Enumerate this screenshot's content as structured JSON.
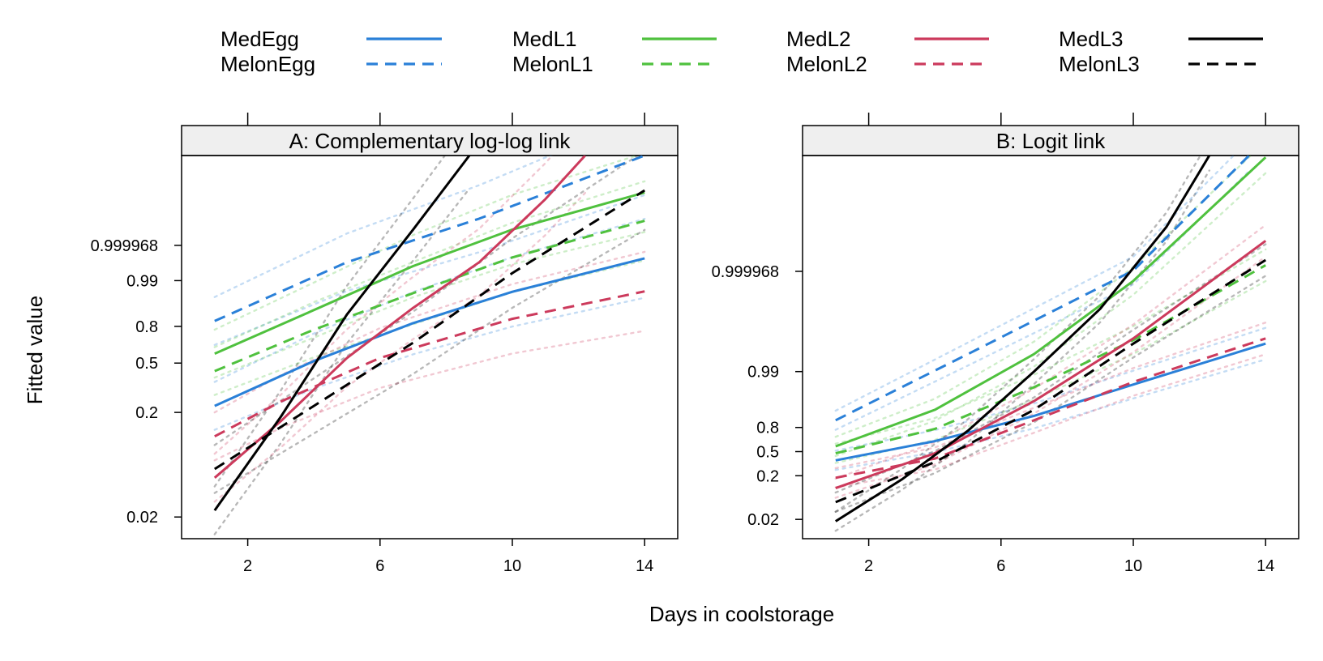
{
  "chart_data": {
    "type": "line",
    "xlabel": "Days in coolstorage",
    "ylabel": "Fitted value",
    "xlim": [
      0,
      15
    ],
    "x_ticks": [
      2,
      6,
      10,
      14
    ],
    "legend": {
      "placement": "top",
      "entries": [
        {
          "name": "MedEgg",
          "color": "#2a80d8",
          "dash": "solid"
        },
        {
          "name": "MelonEgg",
          "color": "#2a80d8",
          "dash": "dashed"
        },
        {
          "name": "MedL1",
          "color": "#4fc13e",
          "dash": "solid"
        },
        {
          "name": "MelonL1",
          "color": "#4fc13e",
          "dash": "dashed"
        },
        {
          "name": "MedL2",
          "color": "#cc3a5c",
          "dash": "solid"
        },
        {
          "name": "MelonL2",
          "color": "#cc3a5c",
          "dash": "dashed"
        },
        {
          "name": "MedL3",
          "color": "#000000",
          "dash": "solid"
        },
        {
          "name": "MelonL3",
          "color": "#000000",
          "dash": "dashed"
        }
      ]
    },
    "panels": [
      {
        "key": "cll",
        "title": "A: Complementary log-log link",
        "y_ticks": [
          "0.02",
          "0.2",
          "0.5",
          "0.8",
          "0.99",
          "0.999968"
        ],
        "y_tick_positions": [
          -3.902,
          -1.5,
          -0.367,
          0.476,
          1.527,
          2.337
        ],
        "ylim": [
          -4.4,
          4.4
        ],
        "series": [
          {
            "name": "MedEgg",
            "color": "#2a80d8",
            "dash": "solid",
            "x": [
              1,
              4,
              7,
              10,
              14
            ],
            "y": [
              -1.35,
              -0.32,
              0.55,
              1.27,
              2.04
            ]
          },
          {
            "name": "MelonEgg",
            "color": "#2a80d8",
            "dash": "dashed",
            "x": [
              1,
              5,
              9,
              14
            ],
            "y": [
              0.6,
              1.95,
              2.95,
              4.4
            ]
          },
          {
            "name": "MedL1",
            "color": "#4fc13e",
            "dash": "solid",
            "x": [
              1,
              4,
              7,
              10,
              14
            ],
            "y": [
              -0.15,
              0.85,
              1.86,
              2.7,
              3.55
            ]
          },
          {
            "name": "MelonL1",
            "color": "#4fc13e",
            "dash": "dashed",
            "x": [
              1,
              4,
              7,
              10,
              14
            ],
            "y": [
              -0.55,
              0.4,
              1.24,
              2.06,
              2.9
            ]
          },
          {
            "name": "MedL2",
            "color": "#cc3a5c",
            "dash": "solid",
            "x": [
              1,
              3,
              5,
              7,
              9,
              11,
              12.2
            ],
            "y": [
              -3.0,
              -1.7,
              -0.25,
              0.9,
              1.95,
              3.4,
              4.4
            ]
          },
          {
            "name": "MelonL2",
            "color": "#cc3a5c",
            "dash": "dashed",
            "x": [
              1,
              3,
              6,
              10,
              14
            ],
            "y": [
              -2.05,
              -1.25,
              -0.25,
              0.65,
              1.28
            ]
          },
          {
            "name": "MedL3",
            "color": "#000000",
            "dash": "solid",
            "x": [
              1,
              3,
              5,
              7,
              8.7
            ],
            "y": [
              -3.75,
              -1.6,
              0.75,
              2.7,
              4.4
            ]
          },
          {
            "name": "MelonL3",
            "color": "#000000",
            "dash": "dashed",
            "x": [
              1,
              4,
              7,
              10,
              14
            ],
            "y": [
              -2.8,
              -1.35,
              0.1,
              1.7,
              3.6
            ]
          }
        ]
      },
      {
        "key": "logit",
        "title": "B: Logit link",
        "y_ticks": [
          "0.02",
          "0.2",
          "0.5",
          "0.8",
          "0.99",
          "0.999968"
        ],
        "y_tick_positions": [
          -3.892,
          -1.386,
          0.0,
          1.386,
          4.595,
          10.35
        ],
        "ylim": [
          -5.0,
          17.0
        ],
        "series": [
          {
            "name": "MedEgg",
            "color": "#2a80d8",
            "dash": "solid",
            "x": [
              1,
              4,
              7,
              10,
              14
            ],
            "y": [
              -0.5,
              0.6,
              2.05,
              3.85,
              6.2
            ]
          },
          {
            "name": "MelonEgg",
            "color": "#2a80d8",
            "dash": "dashed",
            "x": [
              1,
              5,
              10,
              13.5
            ],
            "y": [
              1.8,
              5.6,
              10.4,
              17.0
            ]
          },
          {
            "name": "MedL1",
            "color": "#4fc13e",
            "dash": "solid",
            "x": [
              1,
              4,
              7,
              10,
              14
            ],
            "y": [
              0.3,
              2.4,
              5.6,
              9.8,
              16.9
            ]
          },
          {
            "name": "MelonL1",
            "color": "#4fc13e",
            "dash": "dashed",
            "x": [
              1,
              4,
              7,
              10,
              14
            ],
            "y": [
              -0.1,
              1.3,
              3.7,
              6.4,
              10.7
            ]
          },
          {
            "name": "MedL2",
            "color": "#cc3a5c",
            "dash": "solid",
            "x": [
              1,
              4,
              7,
              10,
              14
            ],
            "y": [
              -2.1,
              -0.1,
              2.9,
              6.5,
              12.1
            ]
          },
          {
            "name": "MelonL2",
            "color": "#cc3a5c",
            "dash": "dashed",
            "x": [
              1,
              4,
              7,
              10,
              14
            ],
            "y": [
              -1.5,
              -0.4,
              1.8,
              4.0,
              6.5
            ]
          },
          {
            "name": "MedL3",
            "color": "#000000",
            "dash": "solid",
            "x": [
              1,
              3,
              5,
              7,
              9,
              11,
              12.3
            ],
            "y": [
              -4.0,
              -1.6,
              1.2,
              4.6,
              8.2,
              12.9,
              17.0
            ]
          },
          {
            "name": "MelonL3",
            "color": "#000000",
            "dash": "dashed",
            "x": [
              1,
              4,
              7,
              10,
              14
            ],
            "y": [
              -2.9,
              -0.6,
              2.4,
              6.2,
              11.0
            ]
          }
        ]
      }
    ]
  }
}
